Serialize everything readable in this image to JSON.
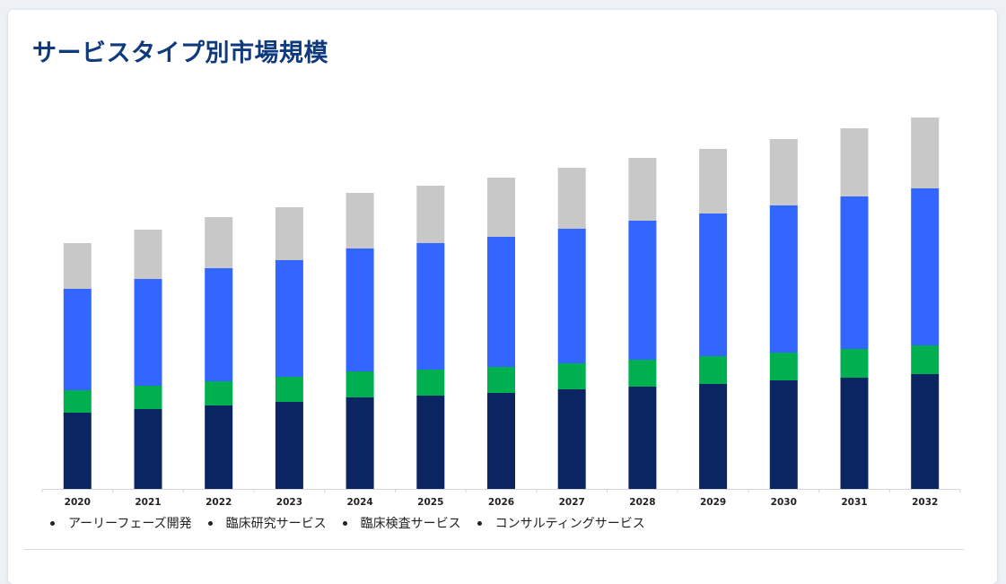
{
  "title": "サービスタイプ別市場規模",
  "colors": {
    "early_phase": "#0b2462",
    "clinical_research": "#00b050",
    "clinical_testing": "#3366ff",
    "consulting": "#c8c8c8"
  },
  "legend": [
    {
      "label": "アーリーフェーズ開発",
      "color": "#0b2462"
    },
    {
      "label": "臨床研究サービス",
      "color": "#00b050"
    },
    {
      "label": "臨床検査サービス",
      "color": "#3366ff"
    },
    {
      "label": "コンサルティングサービス",
      "color": "#c8c8c8"
    }
  ],
  "chart_data": {
    "type": "bar",
    "stacked": true,
    "title": "サービスタイプ別市場規模",
    "xlabel": "",
    "ylabel": "",
    "grid": false,
    "legend_position": "bottom",
    "categories": [
      "2020",
      "2021",
      "2022",
      "2023",
      "2024",
      "2025",
      "2026",
      "2027",
      "2028",
      "2029",
      "2030",
      "2031",
      "2032"
    ],
    "ylim": [
      0,
      425
    ],
    "series": [
      {
        "name": "アーリーフェーズ開発",
        "color": "#0b2462",
        "values": [
          85,
          89,
          93,
          97,
          102,
          104,
          107,
          111,
          114,
          117,
          121,
          124,
          128
        ]
      },
      {
        "name": "臨床研究サービス",
        "color": "#00b050",
        "values": [
          25,
          26,
          27,
          28,
          29,
          29,
          29,
          29,
          30,
          31,
          31,
          32,
          32
        ]
      },
      {
        "name": "臨床検査サービス",
        "color": "#3366ff",
        "values": [
          113,
          119,
          126,
          130,
          137,
          141,
          145,
          150,
          155,
          159,
          164,
          170,
          175
        ]
      },
      {
        "name": "コンサルティングサービス",
        "color": "#c8c8c8",
        "values": [
          51,
          55,
          57,
          59,
          62,
          64,
          66,
          68,
          70,
          72,
          74,
          76,
          79
        ]
      }
    ]
  }
}
